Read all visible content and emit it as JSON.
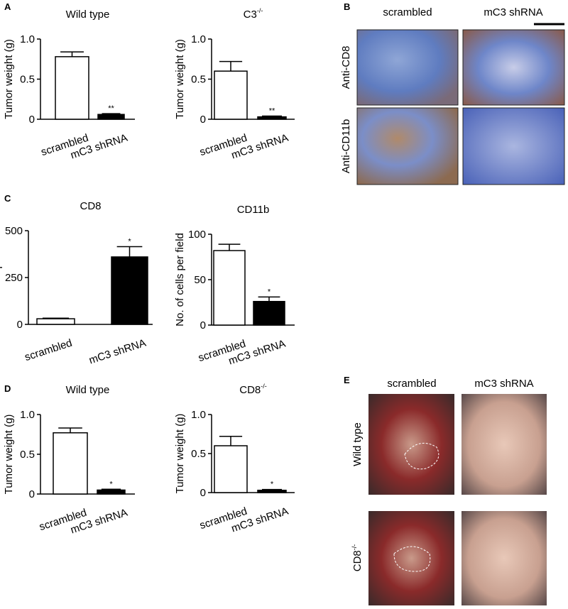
{
  "chart_data": [
    {
      "type": "bar",
      "title": "Wild type",
      "ylabel": "Tumor weight (g)",
      "categories": [
        "scrambled",
        "mC3 shRNA"
      ],
      "values": [
        0.78,
        0.06
      ],
      "errors": [
        0.06,
        0.01
      ],
      "value_annotations": [
        null,
        "**"
      ],
      "colors": [
        "#ffffff",
        "#000000"
      ],
      "ylim": [
        0,
        1.0
      ],
      "yticks": [
        0,
        0.5,
        {
          "value": 1.0,
          "label": "1.0"
        }
      ]
    },
    {
      "type": "bar",
      "title": "C3",
      "title_superscript": "-/-",
      "ylabel": "Tumor weight (g)",
      "categories": [
        "scrambled",
        "mC3 shRNA"
      ],
      "values": [
        0.6,
        0.03
      ],
      "errors": [
        0.12,
        0.01
      ],
      "value_annotations": [
        null,
        "**"
      ],
      "colors": [
        "#ffffff",
        "#000000"
      ],
      "ylim": [
        0,
        1.0
      ],
      "yticks": [
        0,
        0.5,
        {
          "value": 1.0,
          "label": "1.0"
        }
      ]
    },
    {
      "type": "bar",
      "title": "CD8",
      "ylabel": "No. of cells per field",
      "categories": [
        "scrambled",
        "mC3 shRNA"
      ],
      "values": [
        30,
        360
      ],
      "errors": [
        3,
        55
      ],
      "value_annotations": [
        null,
        "*"
      ],
      "colors": [
        "#ffffff",
        "#000000"
      ],
      "ylim": [
        0,
        500
      ],
      "yticks": [
        0,
        250,
        500
      ]
    },
    {
      "type": "bar",
      "title": "CD11b",
      "ylabel": "No. of cells per field",
      "categories": [
        "scrambled",
        "mC3 shRNA"
      ],
      "values": [
        82,
        26
      ],
      "errors": [
        7,
        5
      ],
      "value_annotations": [
        null,
        "*"
      ],
      "colors": [
        "#ffffff",
        "#000000"
      ],
      "ylim": [
        0,
        100
      ],
      "yticks": [
        0,
        50,
        100
      ]
    },
    {
      "type": "bar",
      "title": "Wild type",
      "ylabel": "Tumor weight (g)",
      "categories": [
        "scrambled",
        "mC3 shRNA"
      ],
      "values": [
        0.77,
        0.05
      ],
      "errors": [
        0.06,
        0.01
      ],
      "value_annotations": [
        null,
        "*"
      ],
      "colors": [
        "#ffffff",
        "#000000"
      ],
      "ylim": [
        0,
        1.0
      ],
      "yticks": [
        0,
        0.5,
        {
          "value": 1.0,
          "label": "1.0"
        }
      ]
    },
    {
      "type": "bar",
      "title": "CD8",
      "title_superscript": "-/-",
      "ylabel": "Tumor weight (g)",
      "categories": [
        "scrambled",
        "mC3 shRNA"
      ],
      "values": [
        0.6,
        0.03
      ],
      "errors": [
        0.12,
        0.01
      ],
      "value_annotations": [
        null,
        "*"
      ],
      "colors": [
        "#ffffff",
        "#000000"
      ],
      "ylim": [
        0,
        1.0
      ],
      "yticks": [
        0,
        0.5,
        {
          "value": 1.0,
          "label": "1.0"
        }
      ]
    }
  ],
  "figure": {
    "panels": [
      "A",
      "B",
      "C",
      "D",
      "E"
    ],
    "B": {
      "columns": [
        "scrambled",
        "mC3 shRNA"
      ],
      "rows": [
        "Anti-CD8",
        "Anti-CD11b"
      ]
    },
    "E": {
      "columns": [
        "scrambled",
        "mC3 shRNA"
      ],
      "rows": [
        {
          "text": "Wild type"
        },
        {
          "text": "CD8",
          "superscript": "-/-"
        }
      ]
    }
  }
}
